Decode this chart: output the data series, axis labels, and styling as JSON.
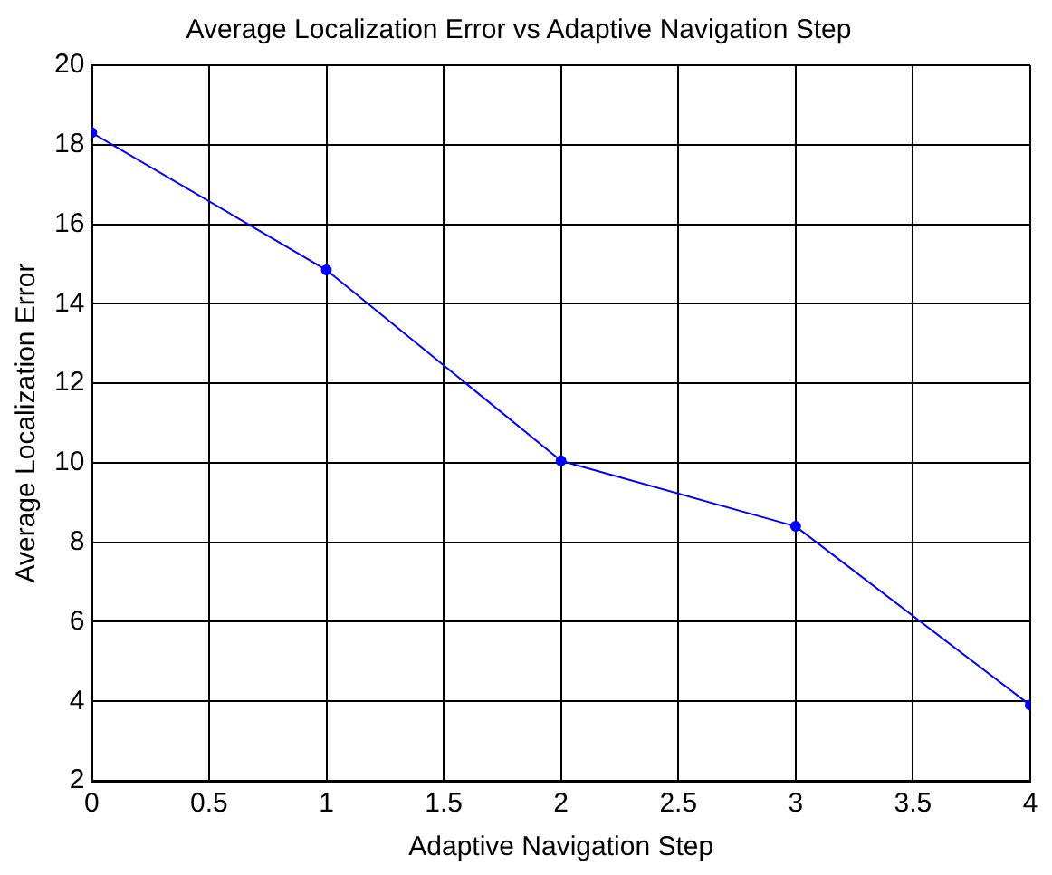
{
  "chart_data": {
    "type": "line",
    "title": "Average Localization Error vs Adaptive Navigation Step",
    "xlabel": "Adaptive Navigation Step",
    "ylabel": "Average Localization Error",
    "x": [
      0,
      1,
      2,
      3,
      4
    ],
    "series": [
      {
        "color": "#0000ff",
        "values": [
          18.3,
          14.85,
          10.05,
          8.4,
          3.9
        ]
      }
    ],
    "xlim": [
      0,
      4
    ],
    "xticks": [
      0,
      0.5,
      1,
      1.5,
      2,
      2.5,
      3,
      3.5,
      4
    ],
    "ylim": [
      2,
      20
    ],
    "yticks": [
      2,
      4,
      6,
      8,
      10,
      12,
      14,
      16,
      18,
      20
    ],
    "grid": true,
    "legend": false,
    "marker": "circle",
    "line_style": "solid"
  }
}
